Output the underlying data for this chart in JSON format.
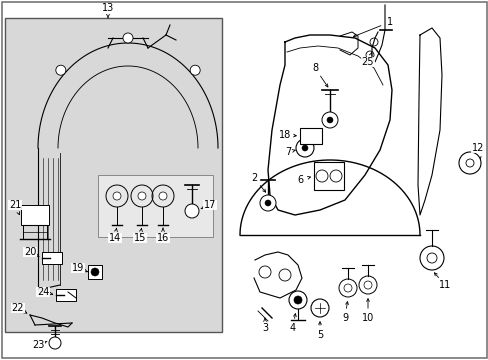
{
  "bg_color": "#ffffff",
  "box_bg": "#e0e0e0",
  "line_color": "#000000",
  "lw": 0.8,
  "fs": 7.0
}
